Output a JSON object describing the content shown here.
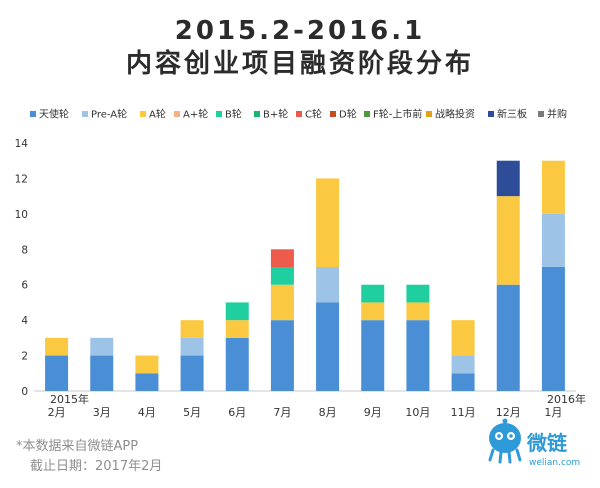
{
  "chart_data": {
    "type": "bar",
    "stacked": true,
    "title": "2015.2-2016.1",
    "subtitle": "内容创业项目融资阶段分布",
    "categories": [
      "2月",
      "3月",
      "4月",
      "5月",
      "6月",
      "7月",
      "8月",
      "9月",
      "10月",
      "11月",
      "12月",
      "1月"
    ],
    "year_labels": {
      "start": "2015年",
      "end": "2016年"
    },
    "ylim": [
      0,
      14
    ],
    "yticks": [
      0,
      2,
      4,
      6,
      8,
      10,
      12,
      14
    ],
    "grid": false,
    "legend_position": "top",
    "series": [
      {
        "name": "天使轮",
        "color": "#4a8fd6",
        "values": [
          2,
          2,
          1,
          2,
          3,
          4,
          5,
          4,
          4,
          1,
          6,
          7
        ]
      },
      {
        "name": "Pre-A轮",
        "color": "#9dc3e6",
        "values": [
          0,
          1,
          0,
          1,
          0,
          0,
          2,
          0,
          0,
          1,
          0,
          3
        ]
      },
      {
        "name": "A轮",
        "color": "#fbc842",
        "values": [
          1,
          0,
          1,
          1,
          1,
          2,
          5,
          1,
          1,
          2,
          5,
          3
        ]
      },
      {
        "name": "A+轮",
        "color": "#f4b183",
        "values": [
          0,
          0,
          0,
          0,
          0,
          0,
          0,
          0,
          0,
          0,
          0,
          0
        ]
      },
      {
        "name": "B轮",
        "color": "#1fcf9f",
        "values": [
          0,
          0,
          0,
          0,
          1,
          1,
          0,
          1,
          1,
          0,
          0,
          0
        ]
      },
      {
        "name": "B+轮",
        "color": "#19b46e",
        "values": [
          0,
          0,
          0,
          0,
          0,
          0,
          0,
          0,
          0,
          0,
          0,
          0
        ]
      },
      {
        "name": "C轮",
        "color": "#ec5b4b",
        "values": [
          0,
          0,
          0,
          0,
          0,
          1,
          0,
          0,
          0,
          0,
          0,
          0
        ]
      },
      {
        "name": "D轮",
        "color": "#c0501f",
        "values": [
          0,
          0,
          0,
          0,
          0,
          0,
          0,
          0,
          0,
          0,
          0,
          0
        ]
      },
      {
        "name": "F轮-上市前",
        "color": "#4e9a3a",
        "values": [
          0,
          0,
          0,
          0,
          0,
          0,
          0,
          0,
          0,
          0,
          0,
          0
        ]
      },
      {
        "name": "战略投资",
        "color": "#e0a21b",
        "values": [
          0,
          0,
          0,
          0,
          0,
          0,
          0,
          0,
          0,
          0,
          0,
          0
        ]
      },
      {
        "name": "新三板",
        "color": "#2e4d99",
        "values": [
          0,
          0,
          0,
          0,
          0,
          0,
          0,
          0,
          0,
          0,
          2,
          0
        ]
      },
      {
        "name": "并购",
        "color": "#7a7a7a",
        "values": [
          0,
          0,
          0,
          0,
          0,
          0,
          0,
          0,
          0,
          0,
          0,
          0
        ]
      }
    ]
  },
  "footer": {
    "source": "*本数据来自微链APP",
    "cutoff": "截止日期：2017年2月"
  },
  "brand": {
    "name": "微链",
    "site": "welian.com",
    "color": "#2f9ad8"
  }
}
